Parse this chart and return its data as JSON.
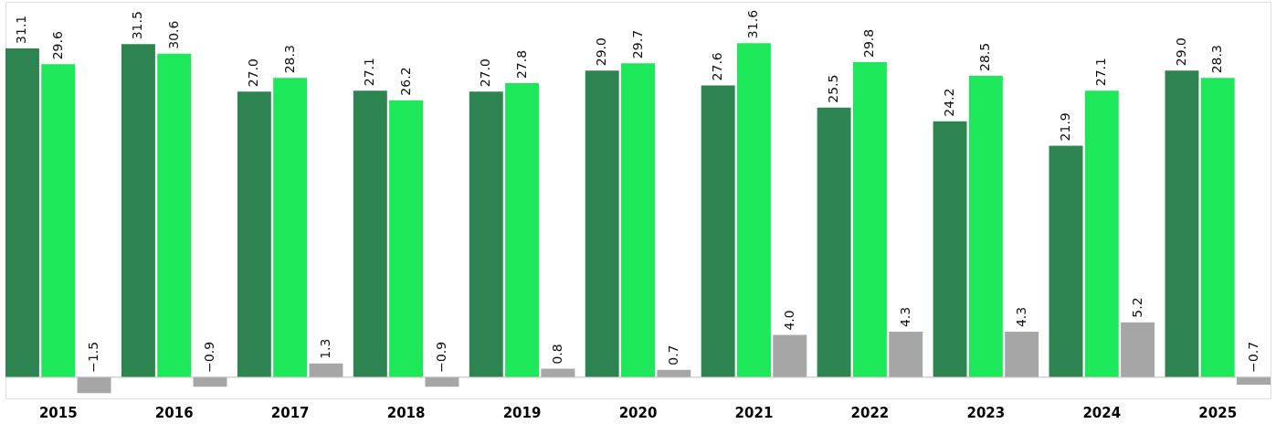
{
  "chart_data": {
    "type": "bar",
    "categories": [
      "2015",
      "2016",
      "2017",
      "2018",
      "2019",
      "2020",
      "2021",
      "2022",
      "2023",
      "2024",
      "2025"
    ],
    "series": [
      {
        "color": "#2e8450",
        "values": [
          31.1,
          31.5,
          27.0,
          27.1,
          27.0,
          29.0,
          27.6,
          25.5,
          24.2,
          21.9,
          29.0
        ],
        "value_labels": [
          "31.1",
          "31.5",
          "27.0",
          "27.1",
          "27.0",
          "29.0",
          "27.6",
          "25.5",
          "24.2",
          "21.9",
          "29.0"
        ]
      },
      {
        "color": "#1de85a",
        "values": [
          29.6,
          30.6,
          28.3,
          26.2,
          27.8,
          29.7,
          31.6,
          29.8,
          28.5,
          27.1,
          28.3
        ],
        "value_labels": [
          "29.6",
          "30.6",
          "28.3",
          "26.2",
          "27.8",
          "29.7",
          "31.6",
          "29.8",
          "28.5",
          "27.1",
          "28.3"
        ]
      },
      {
        "color": "#a6a6a6",
        "values": [
          -1.5,
          -0.9,
          1.3,
          -0.9,
          0.8,
          0.7,
          4.0,
          4.3,
          4.3,
          5.2,
          -0.7
        ],
        "value_labels": [
          "−1.5",
          "−0.9",
          "1.3",
          "−0.9",
          "0.8",
          "0.7",
          "4.0",
          "4.3",
          "4.3",
          "5.2",
          "−0.7"
        ]
      }
    ],
    "ylim": [
      -2,
      35.5
    ],
    "tick_labels": "x",
    "grid": false,
    "legend": false
  }
}
